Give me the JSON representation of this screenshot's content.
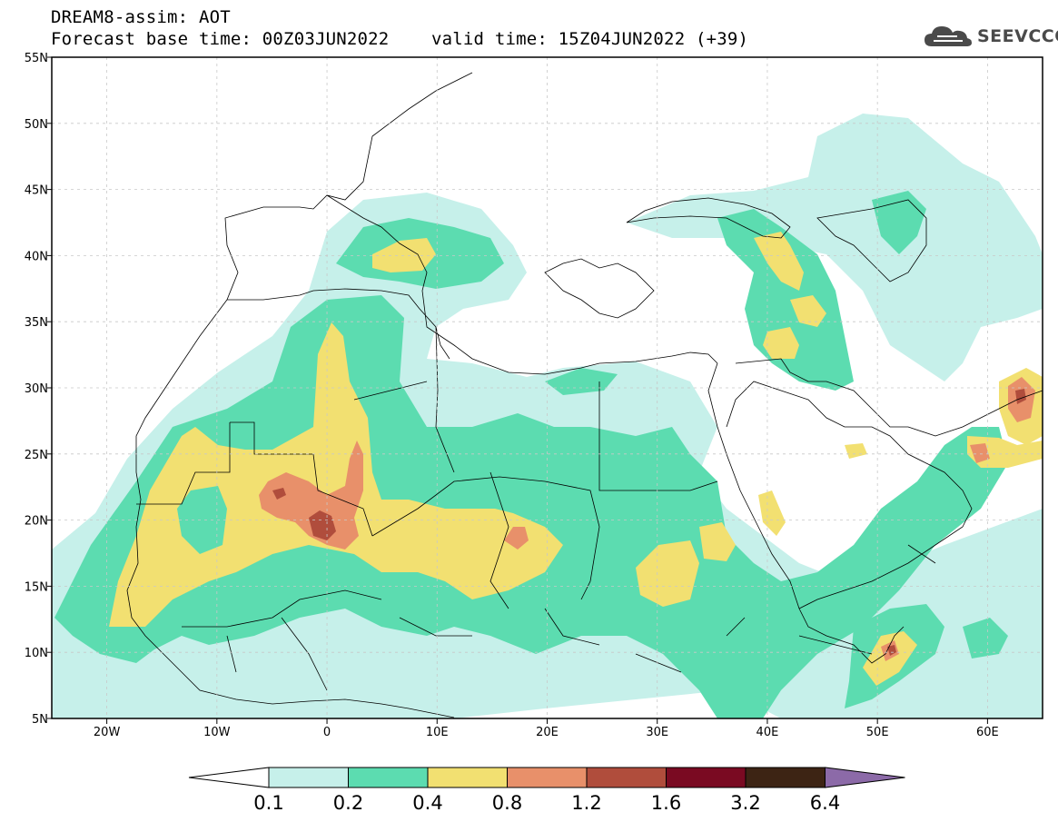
{
  "header": {
    "title_line1": "DREAM8-assim: AOT",
    "title_line2": "Forecast base time: 00Z03JUN2022    valid time: 15Z04JUN2022 (+39)"
  },
  "logo": {
    "text": "SEEVCCC",
    "icon": "cloud-icon",
    "color": "#4a4a4a"
  },
  "map": {
    "x_ticks": [
      "20W",
      "10W",
      "0",
      "10E",
      "20E",
      "30E",
      "40E",
      "50E",
      "60E"
    ],
    "y_ticks": [
      "55N",
      "50N",
      "45N",
      "40N",
      "35N",
      "30N",
      "25N",
      "20N",
      "15N",
      "10N",
      "5N"
    ]
  },
  "colorbar": {
    "labels": [
      "0.1",
      "0.2",
      "0.4",
      "0.8",
      "1.2",
      "1.6",
      "3.2",
      "6.4"
    ],
    "colors": [
      "#c6f0ea",
      "#5cdcb0",
      "#f2e071",
      "#e8906a",
      "#b04d3c",
      "#7a0a22",
      "#3d2414",
      "#8c6aa8"
    ],
    "under_color": "#ffffff"
  }
}
